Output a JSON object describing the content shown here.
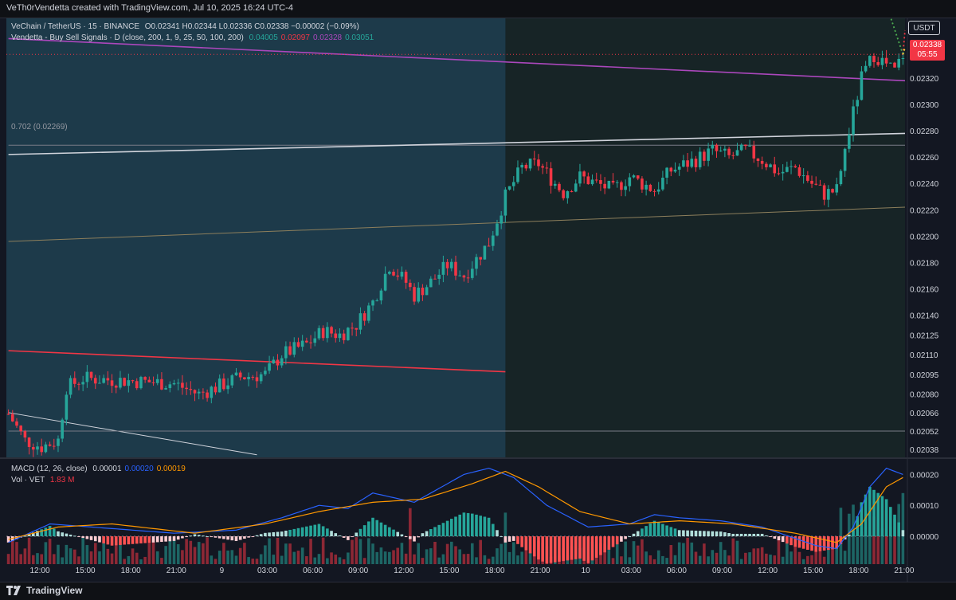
{
  "header": {
    "author_line": "VeTh0rVendetta created with TradingView.com, Jul 10, 2025 16:24 UTC-4"
  },
  "legend": {
    "symbol": "VeChain / TetherUS · 15 · BINANCE",
    "ohlc": "O0.02341 H0.02344 L0.02336 C0.02338 −0.00002 (−0.09%)",
    "indicator": "Vendetta - Buy Sell Signals · D (close, 200, 1, 9, 25, 50, 100, 200)",
    "indicator_values": [
      {
        "text": "0.04005",
        "color": "#26a69a"
      },
      {
        "text": "0.02097",
        "color": "#f23645"
      },
      {
        "text": "0.02328",
        "color": "#ab47bc"
      },
      {
        "text": "0.03051",
        "color": "#26a69a"
      }
    ],
    "fib_label": "0.702 (0.02269)",
    "macd_label": "MACD (12, 26, close)",
    "macd_values": [
      {
        "text": "0.00001",
        "color": "#d1d4dc"
      },
      {
        "text": "0.00020",
        "color": "#2962ff"
      },
      {
        "text": "0.00019",
        "color": "#ff9800"
      }
    ],
    "vol_label": "Vol · VET",
    "vol_value": "1.83 M"
  },
  "price_scale": {
    "currency": "USDT",
    "last_price": "0.02338",
    "countdown": "05:55"
  },
  "branding": {
    "logo_text": "TradingView"
  },
  "colors": {
    "bull": "#26a69a",
    "bear": "#f23645",
    "zone": "#1d3a4a",
    "macd": "#2962ff",
    "signal": "#ff9800",
    "price_line_purple": "#ab47bc"
  },
  "chart_data": [
    {
      "type": "candlestick",
      "title": "VeChain / TetherUS · 15 · BINANCE",
      "ylim": [
        0.02032,
        0.02366
      ],
      "y_tick_labels": [
        "0.02320",
        "0.02300",
        "0.02280",
        "0.02260",
        "0.02240",
        "0.02220",
        "0.02200",
        "0.02180",
        "0.02160",
        "0.02140",
        "0.02125",
        "0.02110",
        "0.02095",
        "0.02080",
        "0.02066",
        "0.02052",
        "0.02038"
      ],
      "y_tick_values": [
        0.0232,
        0.023,
        0.0228,
        0.0226,
        0.0224,
        0.0222,
        0.022,
        0.0218,
        0.0216,
        0.0214,
        0.02125,
        0.0211,
        0.02095,
        0.0208,
        0.02066,
        0.02052,
        0.02038
      ],
      "x_tick_labels": [
        "12:00",
        "15:00",
        "18:00",
        "21:00",
        "9",
        "03:00",
        "06:00",
        "09:00",
        "12:00",
        "15:00",
        "18:00",
        "21:00",
        "10",
        "03:00",
        "06:00",
        "09:00",
        "12:00",
        "15:00",
        "18:00",
        "21:00"
      ],
      "close_path": [
        [
          0,
          0.02065
        ],
        [
          4,
          0.02045
        ],
        [
          8,
          0.0204
        ],
        [
          12,
          0.02045
        ],
        [
          14,
          0.02085
        ],
        [
          18,
          0.02092
        ],
        [
          30,
          0.0209
        ],
        [
          40,
          0.02088
        ],
        [
          46,
          0.0208
        ],
        [
          50,
          0.02085
        ],
        [
          56,
          0.02093
        ],
        [
          62,
          0.02095
        ],
        [
          66,
          0.0211
        ],
        [
          72,
          0.02118
        ],
        [
          76,
          0.02128
        ],
        [
          80,
          0.02125
        ],
        [
          84,
          0.02133
        ],
        [
          88,
          0.0215
        ],
        [
          92,
          0.02178
        ],
        [
          96,
          0.02165
        ],
        [
          98,
          0.02155
        ],
        [
          102,
          0.02165
        ],
        [
          106,
          0.02178
        ],
        [
          110,
          0.0217
        ],
        [
          116,
          0.02195
        ],
        [
          120,
          0.0223
        ],
        [
          124,
          0.02252
        ],
        [
          128,
          0.02255
        ],
        [
          132,
          0.0224
        ],
        [
          134,
          0.02233
        ],
        [
          138,
          0.02245
        ],
        [
          142,
          0.0224
        ],
        [
          146,
          0.02235
        ],
        [
          150,
          0.02245
        ],
        [
          156,
          0.02235
        ],
        [
          160,
          0.0225
        ],
        [
          166,
          0.02258
        ],
        [
          170,
          0.02265
        ],
        [
          174,
          0.0226
        ],
        [
          178,
          0.02265
        ],
        [
          182,
          0.02258
        ],
        [
          186,
          0.02248
        ],
        [
          190,
          0.02252
        ],
        [
          194,
          0.0224
        ],
        [
          197,
          0.02232
        ],
        [
          200,
          0.02235
        ],
        [
          203,
          0.0228
        ],
        [
          206,
          0.0232
        ],
        [
          209,
          0.02338
        ],
        [
          212,
          0.0233
        ],
        [
          214,
          0.02325
        ],
        [
          216,
          0.02338
        ]
      ],
      "candle_count": 217,
      "lines": [
        {
          "name": "0.702 (0.02269)",
          "from": [
            0,
            0.02269
          ],
          "to": [
            217,
            0.02269
          ],
          "color": "#787b86"
        },
        {
          "name": "purple",
          "from": [
            0,
            0.0235
          ],
          "to": [
            217,
            0.02318
          ],
          "color": "#ab47bc"
        },
        {
          "name": "upper-trend",
          "from": [
            0,
            0.02262
          ],
          "to": [
            217,
            0.02278
          ],
          "color": "#d1d4dc"
        },
        {
          "name": "mid-trend",
          "from": [
            0,
            0.02196
          ],
          "to": [
            217,
            0.02222
          ],
          "color": "#8d7f5c"
        },
        {
          "name": "red-trend",
          "from": [
            0,
            0.02113
          ],
          "to": [
            120,
            0.02097
          ],
          "color": "#f23645"
        },
        {
          "name": "low-trend",
          "from": [
            0,
            0.02066
          ],
          "to": [
            60,
            0.02034
          ],
          "color": "#d1d4dc"
        },
        {
          "name": "support",
          "from": [
            0,
            0.02052
          ],
          "to": [
            217,
            0.02052
          ],
          "color": "#787b86"
        }
      ],
      "zone": {
        "x_from": 0,
        "x_to": 120,
        "color": "#1d3a4a"
      }
    },
    {
      "type": "macd",
      "title": "MACD (12, 26, close)",
      "ylim": [
        -9e-05,
        0.00025
      ],
      "y_tick_labels": [
        "0.00020",
        "0.00010",
        "0.00000"
      ],
      "y_tick_values": [
        0.0002,
        0.0001,
        0.0
      ],
      "macd_path": [
        [
          0,
          -2e-05
        ],
        [
          10,
          4e-05
        ],
        [
          20,
          3e-05
        ],
        [
          40,
          1e-05
        ],
        [
          55,
          2e-05
        ],
        [
          66,
          6e-05
        ],
        [
          75,
          0.0001
        ],
        [
          82,
          9e-05
        ],
        [
          88,
          0.00014
        ],
        [
          98,
          0.00011
        ],
        [
          110,
          0.0002
        ],
        [
          116,
          0.00022
        ],
        [
          122,
          0.00019
        ],
        [
          130,
          0.0001
        ],
        [
          140,
          3e-05
        ],
        [
          150,
          4e-05
        ],
        [
          156,
          7e-05
        ],
        [
          162,
          6e-05
        ],
        [
          172,
          5e-05
        ],
        [
          182,
          3e-05
        ],
        [
          195,
          -3e-05
        ],
        [
          200,
          -4e-05
        ],
        [
          204,
          3e-05
        ],
        [
          208,
          0.00016
        ],
        [
          212,
          0.00022
        ],
        [
          216,
          0.0002
        ]
      ],
      "signal_path": [
        [
          0,
          -1e-05
        ],
        [
          12,
          3e-05
        ],
        [
          25,
          4e-05
        ],
        [
          45,
          1e-05
        ],
        [
          62,
          4e-05
        ],
        [
          75,
          8e-05
        ],
        [
          88,
          0.00011
        ],
        [
          100,
          0.00012
        ],
        [
          112,
          0.00017
        ],
        [
          120,
          0.00021
        ],
        [
          128,
          0.00016
        ],
        [
          138,
          8e-05
        ],
        [
          150,
          4e-05
        ],
        [
          162,
          5e-05
        ],
        [
          175,
          4e-05
        ],
        [
          190,
          1e-05
        ],
        [
          200,
          -2e-05
        ],
        [
          206,
          4e-05
        ],
        [
          212,
          0.00016
        ],
        [
          216,
          0.00019
        ]
      ]
    }
  ]
}
